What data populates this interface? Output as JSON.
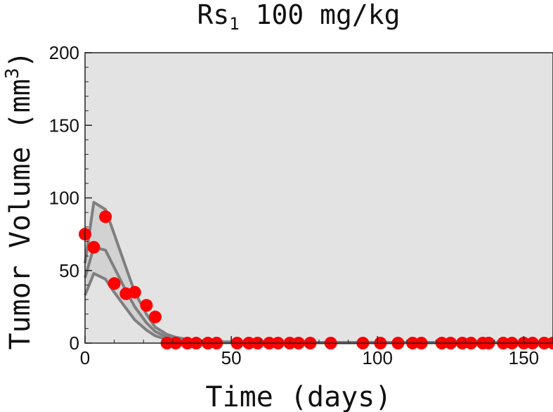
{
  "chart_data": {
    "type": "scatter",
    "title": {
      "prefix": "Rs",
      "subscript": "1",
      "rest": " 100 mg/kg"
    },
    "xlabel": "Time (days)",
    "ylabel": {
      "main": "Tumor Volume (mm",
      "superscript": "3",
      "close": ")"
    },
    "xlim": [
      0,
      160
    ],
    "ylim": [
      0,
      200
    ],
    "xticks": [
      0,
      50,
      100,
      150
    ],
    "yticks": [
      0,
      50,
      100,
      150,
      200
    ],
    "xtick_labels": [
      "0",
      "50",
      "100",
      "150"
    ],
    "ytick_labels": [
      "0",
      "50",
      "100",
      "150",
      "200"
    ],
    "grid": false,
    "legend": "none",
    "colors": {
      "plot_background": "#e3e3e3",
      "band_fill": "#d2d2d2",
      "curve": "#7f7f7f",
      "points": "#ff0000"
    },
    "series": [
      {
        "type": "line",
        "x": [
          0,
          3,
          7,
          10,
          14,
          17,
          21,
          24,
          28,
          31,
          35,
          38,
          42,
          50,
          60,
          80,
          100,
          120,
          140,
          160
        ],
        "values": [
          55,
          97,
          92,
          75,
          52,
          35,
          20,
          11,
          6,
          4,
          2.5,
          1.5,
          1,
          0.8,
          0.6,
          0.5,
          0.5,
          0.5,
          0.5,
          0.5
        ]
      },
      {
        "type": "line",
        "x": [
          0,
          3,
          7,
          10,
          14,
          17,
          21,
          24,
          28,
          31,
          35,
          38,
          42,
          50,
          60,
          80,
          100,
          120,
          140,
          160
        ],
        "values": [
          45,
          66,
          64,
          52,
          36,
          25,
          14,
          8,
          4,
          2.5,
          1.5,
          1,
          0.6,
          0.4,
          0.3,
          0.3,
          0.3,
          0.3,
          0.3,
          0.3
        ]
      },
      {
        "type": "line",
        "x": [
          0,
          3,
          7,
          10,
          14,
          17,
          21,
          24,
          28,
          31,
          35,
          38,
          42,
          50,
          60,
          80,
          100,
          120,
          140,
          160
        ],
        "values": [
          33,
          48,
          44,
          35,
          24,
          16,
          9,
          5,
          2.5,
          1.5,
          1,
          0.5,
          0.3,
          0.2,
          0.1,
          0.1,
          0.1,
          0.1,
          0.1,
          0.1
        ]
      },
      {
        "type": "scatter",
        "x": [
          0,
          3,
          7,
          10,
          14,
          17,
          21,
          24,
          28,
          31,
          35,
          38,
          42,
          45,
          52,
          56,
          59,
          63,
          66,
          70,
          73,
          77,
          84,
          95,
          101,
          107,
          112,
          115,
          122,
          125,
          129,
          132,
          136,
          138,
          143,
          146,
          150,
          153,
          157,
          160
        ],
        "values": [
          75,
          66,
          87,
          41,
          34,
          35,
          26,
          18,
          0,
          0,
          0,
          0,
          0,
          0,
          0,
          0,
          0,
          0,
          0,
          0,
          0,
          0,
          0,
          0,
          0,
          0,
          0,
          0,
          0,
          0,
          0,
          0,
          0,
          0,
          0,
          0,
          0,
          0,
          0,
          0
        ]
      }
    ]
  }
}
